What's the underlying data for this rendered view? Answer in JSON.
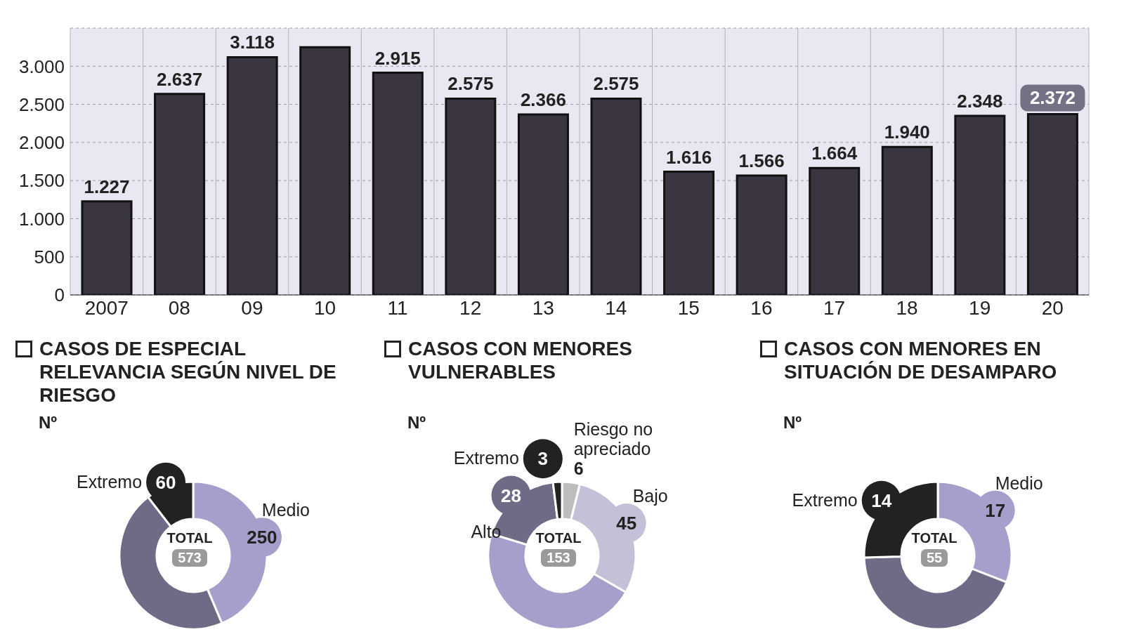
{
  "chart_data": [
    {
      "type": "bar",
      "categories": [
        "2007",
        "08",
        "09",
        "10",
        "11",
        "12",
        "13",
        "14",
        "15",
        "16",
        "17",
        "18",
        "19",
        "20"
      ],
      "values": [
        1227,
        2637,
        3118,
        3250,
        2915,
        2575,
        2366,
        2575,
        1616,
        1566,
        1664,
        1940,
        2348,
        2372
      ],
      "value_labels": [
        "1.227",
        "2.637",
        "3.118",
        null,
        "2.915",
        "2.575",
        "2.366",
        "2.575",
        "1.616",
        "1.566",
        "1.664",
        "1.940",
        "2.348",
        "2.372"
      ],
      "color": "#3b3542",
      "ylim": [
        0,
        3500
      ],
      "yticks": [
        0,
        500,
        {
          "value": 1000,
          "label": "1.000"
        },
        {
          "value": 1500,
          "label": "1.500"
        },
        {
          "value": 2000,
          "label": "2.000"
        },
        {
          "value": 2500,
          "label": "2.500"
        },
        {
          "value": 3000,
          "label": "3.000"
        }
      ],
      "grid": true
    },
    {
      "type": "donut",
      "title": "CASOS DE ESPECIAL RELEVANCIA SEGÚN NIVEL DE RIESGO",
      "subtitle": "Nº",
      "categories": [
        "Medio",
        null,
        "Extremo"
      ],
      "values": [
        250,
        263,
        60
      ],
      "colors": [
        "#a59fcb",
        "#6f6a85",
        "#222222"
      ],
      "value_labels": [
        "250",
        null,
        "60"
      ],
      "annotations": [
        "TOTAL",
        "573"
      ]
    },
    {
      "type": "donut",
      "title": "CASOS CON MENORES VULNERABLES",
      "subtitle": "Nº",
      "categories": [
        "Riesgo no apreciado",
        "Bajo",
        null,
        "Alto",
        "Extremo"
      ],
      "values": [
        6,
        45,
        71,
        28,
        3
      ],
      "colors": [
        "#bdbdbd",
        "#c3c0d8",
        "#a59fcb",
        "#6f6a85",
        "#222222"
      ],
      "value_labels": [
        "6",
        "45",
        null,
        "28",
        "3"
      ],
      "annotations": [
        "TOTAL",
        "153"
      ]
    },
    {
      "type": "donut",
      "title": "CASOS CON MENORES EN SITUACIÓN DE DESAMPARO",
      "subtitle": "Nº",
      "categories": [
        "Medio",
        null,
        "Extremo"
      ],
      "values": [
        17,
        24,
        14
      ],
      "colors": [
        "#a59fcb",
        "#6f6a85",
        "#222222"
      ],
      "value_labels": [
        "17",
        null,
        "14"
      ],
      "annotations": [
        "TOTAL",
        "55"
      ]
    }
  ]
}
